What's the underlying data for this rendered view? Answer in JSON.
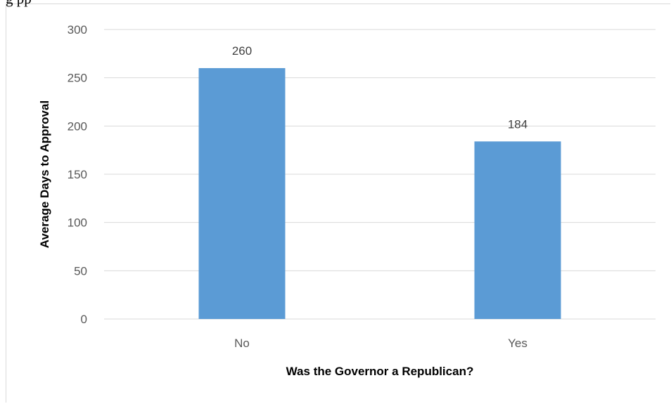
{
  "caption": "g                                                                         pp",
  "chart_data": {
    "type": "bar",
    "categories": [
      "No",
      "Yes"
    ],
    "values": [
      260,
      184
    ],
    "data_labels": [
      "260",
      "184"
    ],
    "title": "",
    "xlabel": "Was the Governor a Republican?",
    "ylabel": "Average Days to Approval",
    "ylim": [
      0,
      300
    ],
    "yticks": [
      0,
      50,
      100,
      150,
      200,
      250,
      300
    ],
    "grid": true,
    "legend": "none",
    "bar_color": "#5b9bd5",
    "gridline_color": "#d9d9d9"
  }
}
